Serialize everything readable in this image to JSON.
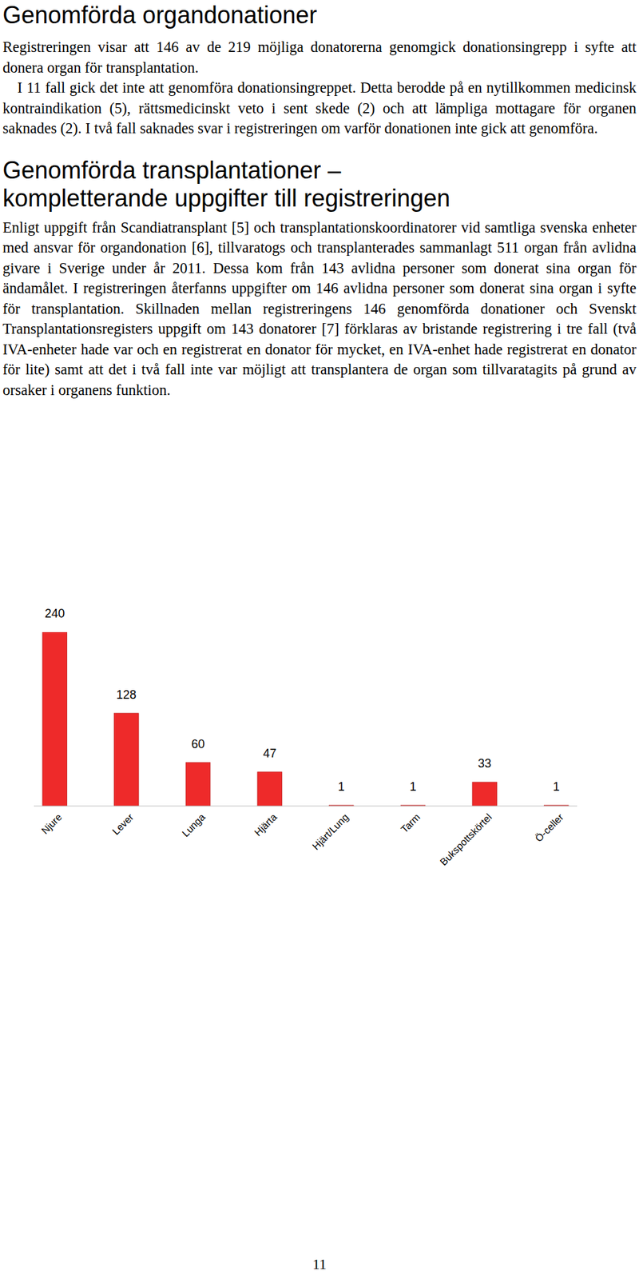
{
  "sections": [
    {
      "heading": [
        "Genomförda organdonationer"
      ],
      "paragraphs": [
        "Registreringen visar att 146 av de 219 möjliga donatorerna genomgick donationsingrepp i syfte att donera organ för transplantation.",
        "I 11 fall gick det inte att genomföra donationsingreppet. Detta berodde på en nytillkommen medicinsk kontraindikation (5), rättsmedicinskt veto i sent skede (2) och att lämpliga mottagare för organen saknades (2). I två fall saknades svar i registreringen om varför donationen inte gick att genomföra."
      ]
    },
    {
      "heading": [
        "Genomförda transplantationer –",
        "kompletterande uppgifter till registreringen"
      ],
      "paragraphs": [
        "Enligt uppgift från Scandiatransplant [5] och transplantationskoordinatorer vid samtliga svenska enheter med ansvar för organdonation [6], tillvaratogs och transplanterades sammanlagt 511 organ från avlidna givare i Sverige under år 2011. Dessa kom från 143 avlidna personer som donerat sina organ för ändamålet. I registreringen återfanns uppgifter om 146 avlidna personer som donerat sina organ i syfte för transplantation. Skillnaden mellan registreringens 146 genomförda donationer och Svenskt Transplantationsregisters uppgift om 143 donatorer [7] förklaras av bristande registrering i tre fall (två IVA-enheter hade var och en registrerat en donator för mycket, en IVA-enhet hade registrerat en donator för lite) samt att det i två fall inte var möjligt att transplantera de organ som tillvaratagits på grund av orsaker i organens funktion."
      ]
    }
  ],
  "chart_data": {
    "type": "bar",
    "categories": [
      "Njure",
      "Lever",
      "Lunga",
      "Hjärta",
      "Hjärt/Lung",
      "Tarm",
      "Bukspottskörtel",
      "Ö-celler"
    ],
    "values": [
      240,
      128,
      60,
      47,
      1,
      1,
      33,
      1
    ],
    "color": "#ee2a2a",
    "data_labels": true,
    "tick_labels": "x"
  },
  "page_number": "11"
}
